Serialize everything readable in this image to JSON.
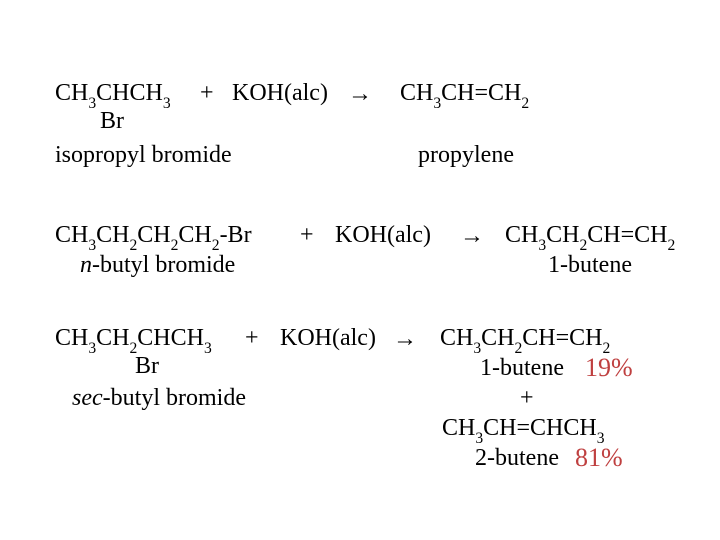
{
  "r1": {
    "reactant_top": "CH<sub>3</sub>CHCH<sub>3</sub>",
    "reactant_bottom": "Br",
    "plus": "+",
    "reagent": "KOH(alc)",
    "arrow": "→",
    "product": "CH<sub>3</sub>CH=CH<sub>2</sub>",
    "reactant_name": "isopropyl bromide",
    "product_name": "propylene"
  },
  "r2": {
    "reactant": "CH<sub>3</sub>CH<sub>2</sub>CH<sub>2</sub>CH<sub>2</sub>-Br",
    "plus": "+",
    "reagent": "KOH(alc)",
    "arrow": "→",
    "product": "CH<sub>3</sub>CH<sub>2</sub>CH=CH<sub>2</sub>",
    "reactant_name_pre": "n",
    "reactant_name_rest": "-butyl bromide",
    "product_name": "1-butene"
  },
  "r3": {
    "reactant_top": "CH<sub>3</sub>CH<sub>2</sub>CHCH<sub>3</sub>",
    "reactant_bottom": "Br",
    "plus": "+",
    "reagent": "KOH(alc)",
    "arrow": "→",
    "product1": "CH<sub>3</sub>CH<sub>2</sub>CH=CH<sub>2</sub>",
    "product1_name": "1-butene",
    "product1_pct": "19%",
    "plus2": "+",
    "product2": "CH<sub>3</sub>CH=CHCH<sub>3</sub>",
    "product2_name": "2-butene",
    "product2_pct": "81%",
    "reactant_name_pre": "sec",
    "reactant_name_rest": "-butyl bromide"
  },
  "colors": {
    "text": "#000000",
    "accent": "#bf4040",
    "bg": "#ffffff"
  }
}
